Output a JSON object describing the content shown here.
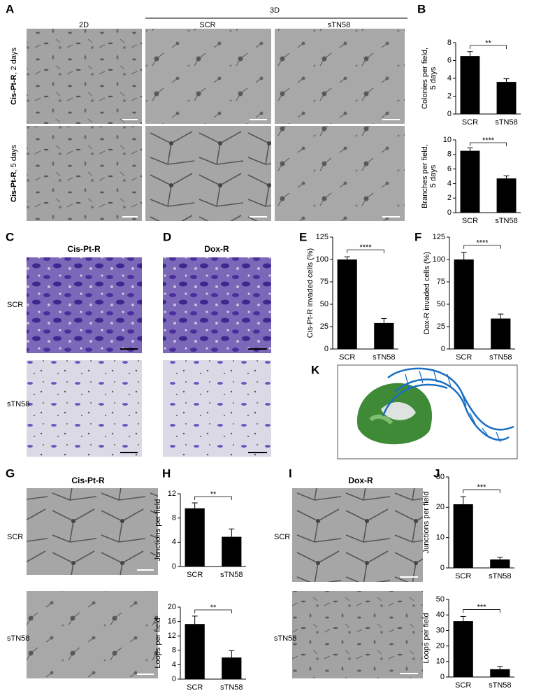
{
  "panel_labels": [
    "A",
    "B",
    "C",
    "D",
    "E",
    "F",
    "G",
    "H",
    "I",
    "J",
    "K"
  ],
  "panel_a": {
    "column_group": "3D",
    "columns": [
      "2D",
      "SCR",
      "sTN58"
    ],
    "rows": [
      {
        "bold": "Cis-Pt-R",
        "text": ", 2 days"
      },
      {
        "bold": "Cis-Pt-R",
        "text": ", 5 days"
      }
    ]
  },
  "panel_cd": {
    "titles": [
      "Cis-Pt-R",
      "Dox-R"
    ],
    "rows": [
      "SCR",
      "sTN58"
    ]
  },
  "panel_g": {
    "title": "Cis-Pt-R",
    "rows": [
      "SCR",
      "sTN58"
    ]
  },
  "panel_i": {
    "title": "Dox-R",
    "rows": [
      "SCR",
      "sTN58"
    ]
  },
  "chart_data": [
    {
      "type": "bar",
      "ylabel": [
        "Colonies per field,",
        "5 days"
      ],
      "categories": [
        "SCR",
        "sTN58"
      ],
      "values": [
        6.5,
        3.6
      ],
      "errors": [
        0.5,
        0.35
      ],
      "color": "#000000",
      "ylim": [
        0,
        8
      ],
      "yticks": [
        0,
        2,
        4,
        6,
        8
      ],
      "significance": "**"
    },
    {
      "type": "bar",
      "ylabel": [
        "Branches per field,",
        "5 days"
      ],
      "categories": [
        "SCR",
        "sTN58"
      ],
      "values": [
        8.5,
        4.7
      ],
      "errors": [
        0.4,
        0.35
      ],
      "color": "#000000",
      "ylim": [
        0,
        10
      ],
      "yticks": [
        0,
        2,
        4,
        6,
        8,
        10
      ],
      "significance": "****"
    },
    {
      "type": "bar",
      "ylabel": [
        "Cis-Pt-R invaded cells (%)"
      ],
      "categories": [
        "SCR",
        "sTN58"
      ],
      "values": [
        100,
        29
      ],
      "errors": [
        3,
        5
      ],
      "color": "#000000",
      "ylim": [
        0,
        125
      ],
      "yticks": [
        0,
        25,
        50,
        75,
        100,
        125
      ],
      "significance": "****"
    },
    {
      "type": "bar",
      "ylabel": [
        "Dox-R invaded cells (%)"
      ],
      "categories": [
        "SCR",
        "sTN58"
      ],
      "values": [
        100,
        34
      ],
      "errors": [
        8,
        5
      ],
      "color": "#000000",
      "ylim": [
        0,
        125
      ],
      "yticks": [
        0,
        25,
        50,
        75,
        100,
        125
      ],
      "significance": "****"
    },
    {
      "type": "bar",
      "ylabel": [
        "Junctions per field"
      ],
      "categories": [
        "SCR",
        "sTN58"
      ],
      "values": [
        9.6,
        4.9
      ],
      "errors": [
        0.9,
        1.3
      ],
      "color": "#000000",
      "ylim": [
        0,
        12
      ],
      "yticks": [
        0,
        4,
        8,
        12
      ],
      "significance": "**"
    },
    {
      "type": "bar",
      "ylabel": [
        "Loops per field"
      ],
      "categories": [
        "SCR",
        "sTN58"
      ],
      "values": [
        15.3,
        6
      ],
      "errors": [
        2.2,
        1.9
      ],
      "color": "#000000",
      "ylim": [
        0,
        20
      ],
      "yticks": [
        0,
        4,
        8,
        12,
        16,
        20
      ],
      "significance": "**"
    },
    {
      "type": "bar",
      "ylabel": [
        "Junctions per field"
      ],
      "categories": [
        "SCR",
        "sTN58"
      ],
      "values": [
        21,
        2.8
      ],
      "errors": [
        2.5,
        0.7
      ],
      "color": "#000000",
      "ylim": [
        0,
        30
      ],
      "yticks": [
        0,
        10,
        20,
        30
      ],
      "significance": "***"
    },
    {
      "type": "bar",
      "ylabel": [
        "Loops per field"
      ],
      "categories": [
        "SCR",
        "sTN58"
      ],
      "values": [
        36,
        5
      ],
      "errors": [
        3,
        1.8
      ],
      "color": "#000000",
      "ylim": [
        0,
        50
      ],
      "yticks": [
        0,
        10,
        20,
        30,
        40,
        50
      ],
      "significance": "***"
    }
  ]
}
